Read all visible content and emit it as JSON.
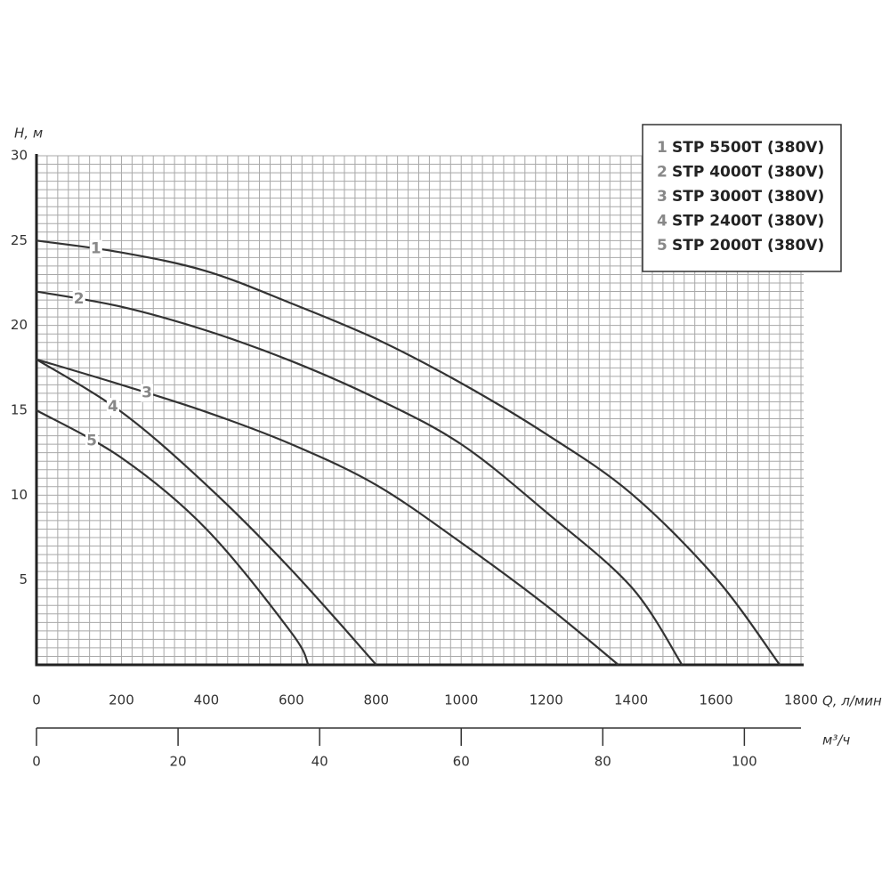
{
  "chart_data": {
    "type": "line",
    "y_label": "H, м",
    "x_label": "Q, л/мин",
    "x2_label": "м³/ч",
    "x": [
      0,
      200,
      400,
      600,
      800,
      1000,
      1200,
      1400,
      1600,
      1750
    ],
    "xlim": [
      0,
      1800
    ],
    "xticks": [
      0,
      200,
      400,
      600,
      800,
      1000,
      1200,
      1400,
      1600,
      1800
    ],
    "ylim": [
      0,
      30
    ],
    "yticks": [
      5,
      10,
      15,
      20,
      25,
      30
    ],
    "x2lim": [
      0,
      108
    ],
    "x2ticks": [
      0,
      20,
      40,
      60,
      80,
      100
    ],
    "grid": true,
    "legend": "upper right",
    "series": [
      {
        "number": "1",
        "name": "STP 5500T (380V)",
        "color": "#333333",
        "x": [
          0,
          200,
          400,
          600,
          800,
          1000,
          1200,
          1400,
          1600,
          1750
        ],
        "values": [
          25,
          24.3,
          23.2,
          21.3,
          19.2,
          16.6,
          13.6,
          10.1,
          5.1,
          0
        ]
      },
      {
        "number": "2",
        "name": "STP 4000T (380V)",
        "color": "#333333",
        "x": [
          0,
          200,
          400,
          600,
          800,
          1000,
          1200,
          1400,
          1520
        ],
        "values": [
          22,
          21.1,
          19.7,
          17.9,
          15.7,
          13,
          9,
          4.6,
          0
        ]
      },
      {
        "number": "3",
        "name": "STP 3000T (380V)",
        "color": "#333333",
        "x": [
          0,
          200,
          400,
          600,
          800,
          1000,
          1200,
          1370
        ],
        "values": [
          18,
          16.5,
          14.9,
          13,
          10.6,
          7.2,
          3.5,
          0
        ]
      },
      {
        "number": "4",
        "name": "STP 2400T (380V)",
        "color": "#333333",
        "x": [
          0,
          200,
          400,
          600,
          800
        ],
        "values": [
          18,
          14.9,
          10.6,
          5.6,
          0
        ]
      },
      {
        "number": "5",
        "name": "STP 2000T (380V)",
        "color": "#333333",
        "x": [
          0,
          200,
          400,
          600,
          640
        ],
        "values": [
          15,
          12.2,
          8,
          1.9,
          0
        ]
      }
    ]
  }
}
